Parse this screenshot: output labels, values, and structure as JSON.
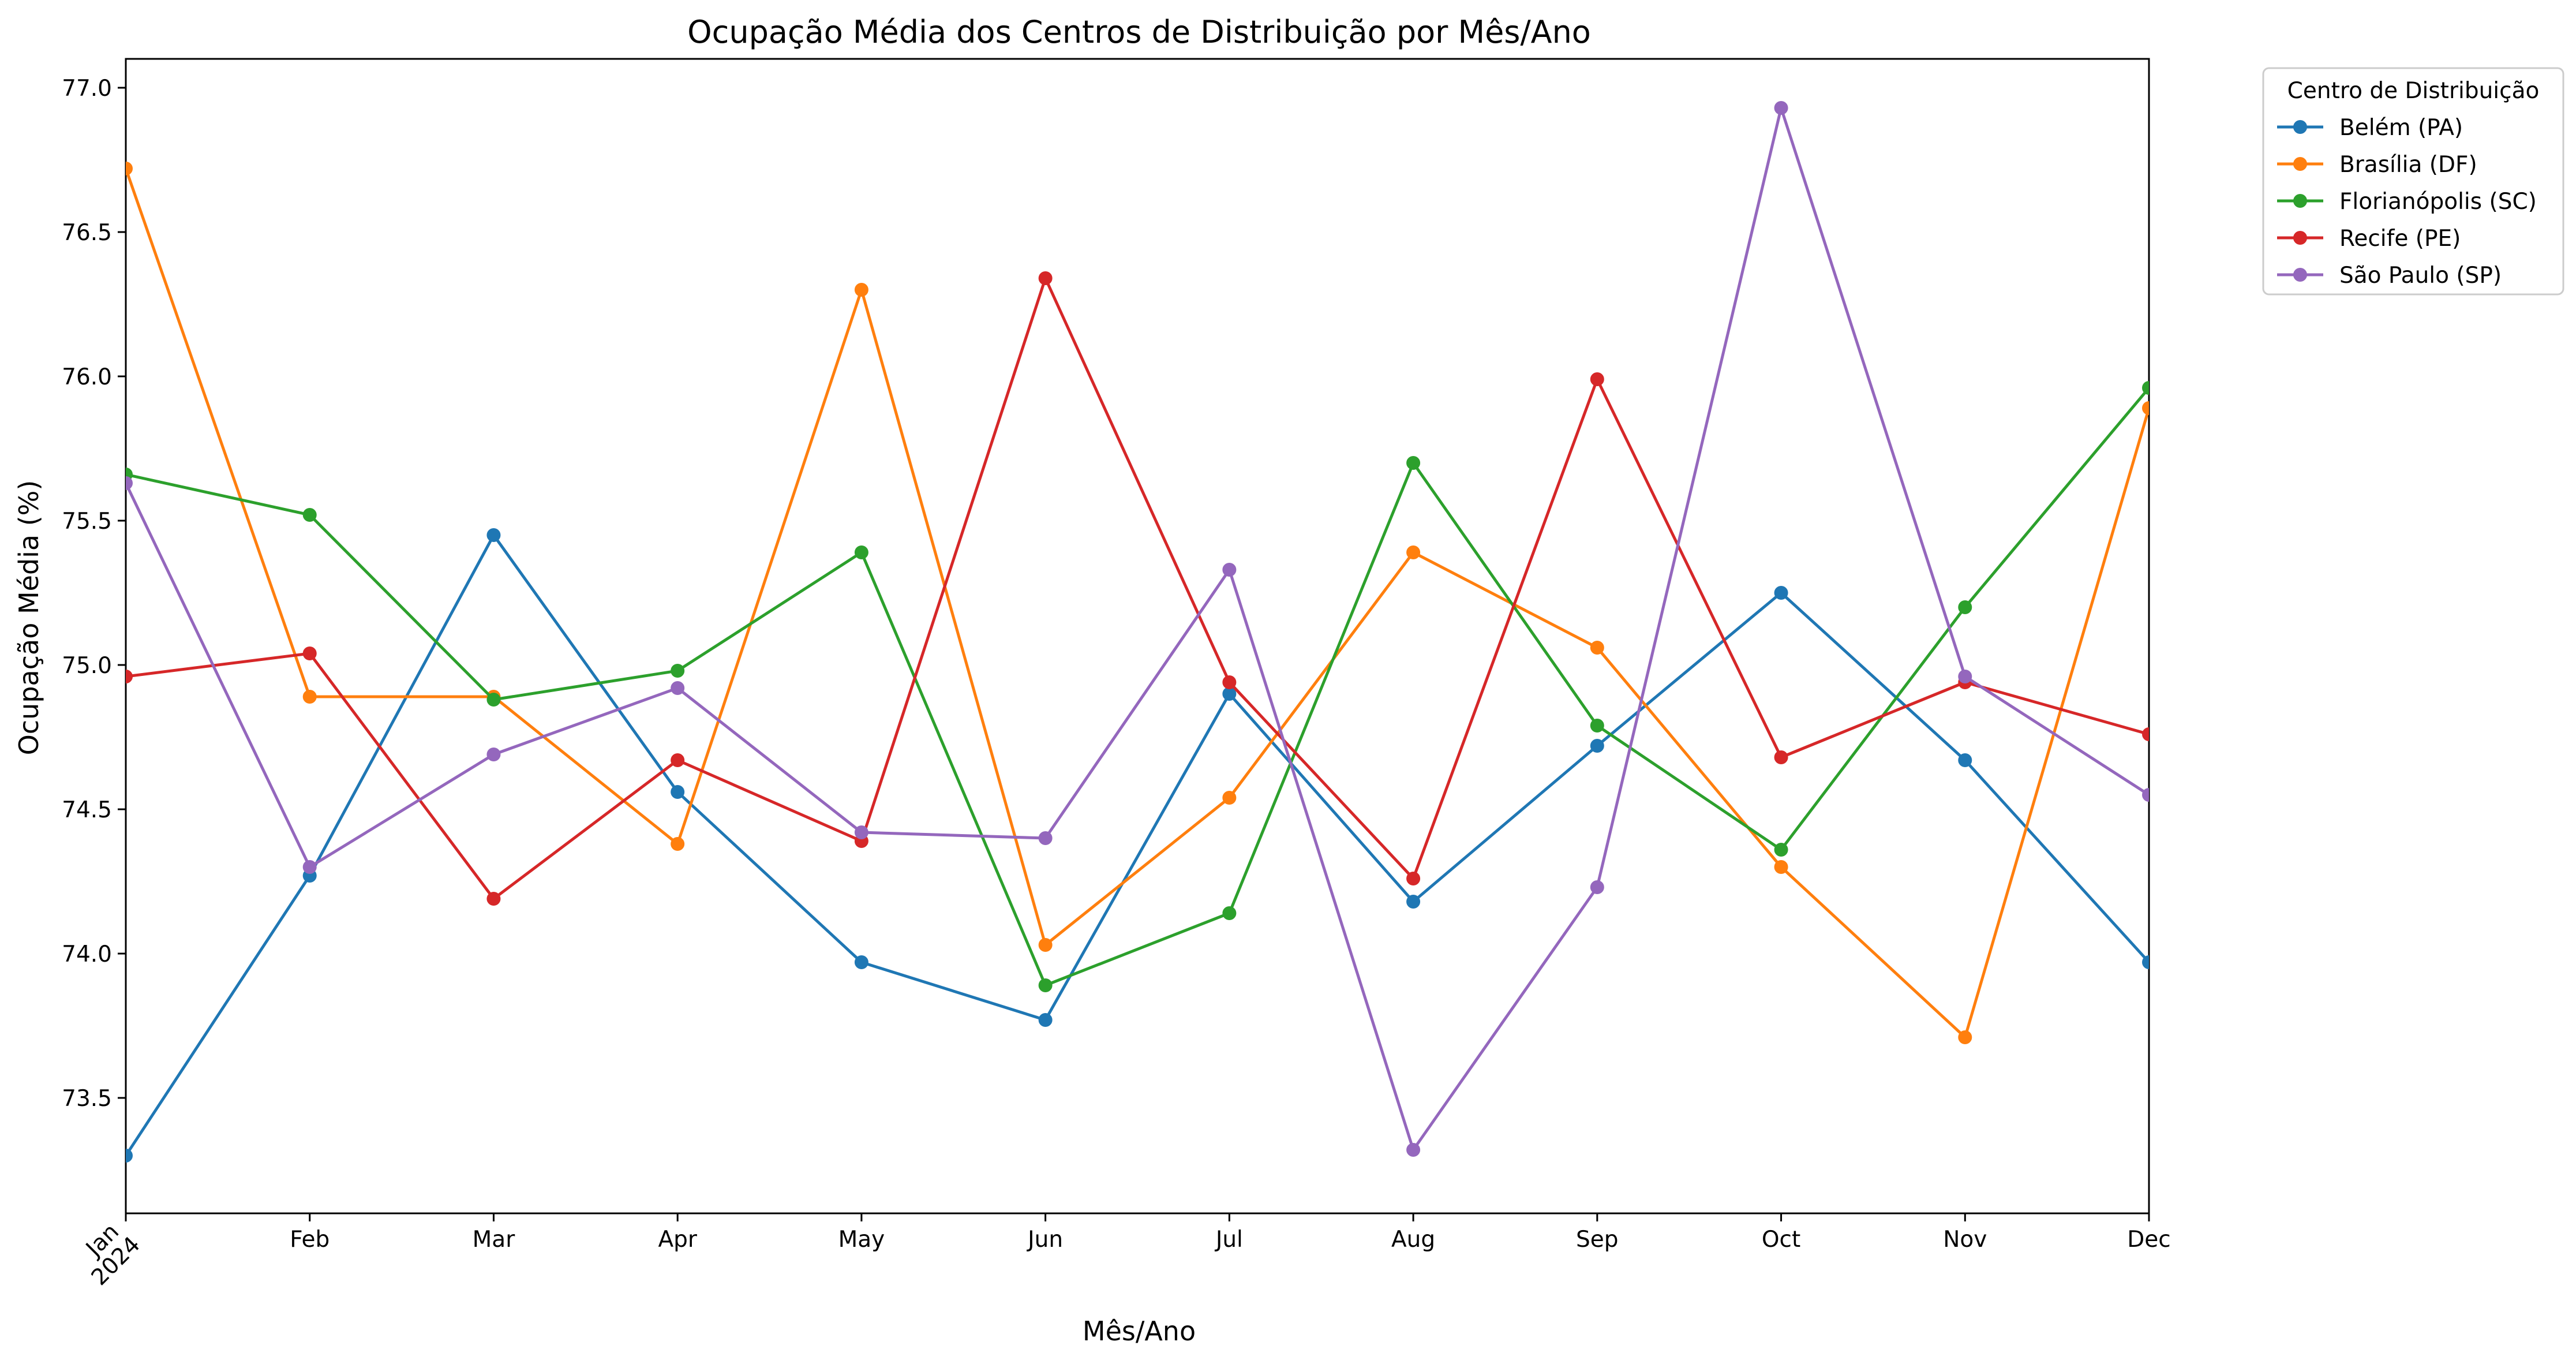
{
  "chart_data": {
    "type": "line",
    "title": "Ocupação Média dos Centros de Distribuição por Mês/Ano",
    "xlabel": "Mês/Ano",
    "ylabel": "Ocupação Média (%)",
    "categories": [
      "Jan",
      "Feb",
      "Mar",
      "Apr",
      "May",
      "Jun",
      "Jul",
      "Aug",
      "Sep",
      "Oct",
      "Nov",
      "Dec"
    ],
    "year_label": "2024",
    "ylim": [
      73.1,
      77.1
    ],
    "yticks": [
      "73.5",
      "74.0",
      "74.5",
      "75.0",
      "75.5",
      "76.0",
      "76.5",
      "77.0"
    ],
    "grid": false,
    "legend": {
      "title": "Centro de Distribuição",
      "placement": "outside-top-right"
    },
    "series": [
      {
        "name": "Belém (PA)",
        "color": "#1f77b4",
        "values": [
          73.3,
          74.27,
          75.45,
          74.56,
          73.97,
          73.77,
          74.9,
          74.18,
          74.72,
          75.25,
          74.67,
          73.97
        ]
      },
      {
        "name": "Brasília (DF)",
        "color": "#ff7f0e",
        "values": [
          76.72,
          74.89,
          74.89,
          74.38,
          76.3,
          74.03,
          74.54,
          75.39,
          75.06,
          74.3,
          73.71,
          75.89
        ]
      },
      {
        "name": "Florianópolis (SC)",
        "color": "#2ca02c",
        "values": [
          75.66,
          75.52,
          74.88,
          74.98,
          75.39,
          73.89,
          74.14,
          75.7,
          74.79,
          74.36,
          75.2,
          75.96
        ]
      },
      {
        "name": "Recife (PE)",
        "color": "#d62728",
        "values": [
          74.96,
          75.04,
          74.19,
          74.67,
          74.39,
          76.34,
          74.94,
          74.26,
          75.99,
          74.68,
          74.94,
          74.76
        ]
      },
      {
        "name": "São Paulo (SP)",
        "color": "#9467bd",
        "values": [
          75.63,
          74.3,
          74.69,
          74.92,
          74.42,
          74.4,
          75.33,
          73.32,
          74.23,
          76.93,
          74.96,
          74.55
        ]
      }
    ]
  }
}
